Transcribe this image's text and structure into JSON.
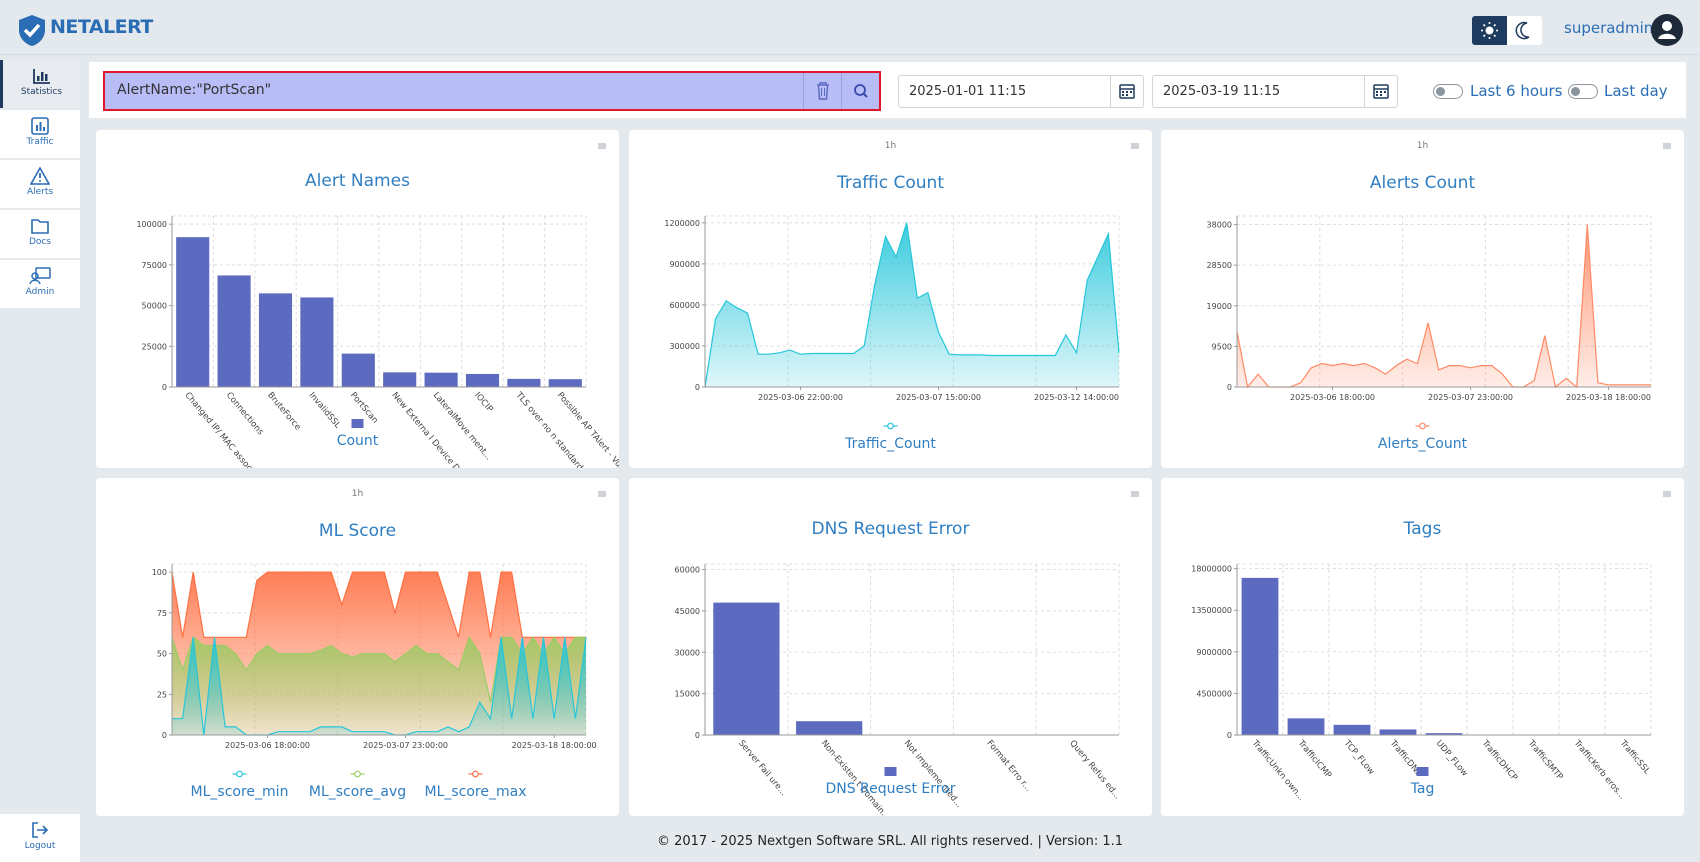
{
  "header": {
    "brand": "NETALERT",
    "user": "superadmin"
  },
  "sidebar": {
    "items": [
      "Statistics",
      "Traffic",
      "Alerts",
      "Docs",
      "Admin"
    ],
    "logout": "Logout"
  },
  "filter": {
    "query": "AlertName:\"PortScan\"",
    "from": "2025-01-01 11:15",
    "to": "2025-03-19 11:15",
    "toggles": [
      "Last 6 hours",
      "Last day"
    ]
  },
  "chart_data": [
    {
      "type": "bar",
      "title": "Alert Names",
      "categories": [
        "Changed IP/ MAC associa...",
        "Connections",
        "BruteForce",
        "InvalidSSL",
        "PortScan",
        "New Externa l Device De...",
        "LateralMove ment...",
        "IOCIP",
        "TLS over no n standard ...",
        "Possible AP TAlert - Vu..."
      ],
      "series": [
        {
          "name": "Count",
          "color": "#5c6bc0",
          "values": [
            92000,
            68500,
            57500,
            55000,
            20500,
            9000,
            8800,
            8000,
            5000,
            4800
          ]
        }
      ],
      "ylim": [
        0,
        105000
      ],
      "yticks": [
        0,
        25000,
        50000,
        75000,
        100000
      ],
      "grid": true
    },
    {
      "type": "area",
      "interval": "1h",
      "title": "Traffic Count",
      "categories": [
        null,
        null,
        null,
        null,
        null,
        null,
        null,
        null,
        null,
        "2025-03-06 22:00:00",
        null,
        null,
        null,
        null,
        null,
        null,
        null,
        null,
        null,
        null,
        null,
        null,
        "2025-03-07 15:00:00",
        null,
        null,
        null,
        null,
        null,
        null,
        null,
        null,
        null,
        null,
        null,
        null,
        "2025-03-12 14:00:00",
        null,
        null,
        null,
        null
      ],
      "series": [
        {
          "name": "Traffic_Count",
          "color": "#26c6da",
          "values": [
            0,
            500000,
            630000,
            580000,
            540000,
            240000,
            240000,
            250000,
            270000,
            240000,
            245000,
            245000,
            245000,
            245000,
            245000,
            300000,
            750000,
            1100000,
            950000,
            1200000,
            650000,
            690000,
            400000,
            240000,
            235000,
            235000,
            235000,
            230000,
            230000,
            230000,
            230000,
            230000,
            230000,
            230000,
            380000,
            250000,
            780000,
            950000,
            1120000,
            250000
          ]
        }
      ],
      "ylim": [
        0,
        1250000
      ],
      "yticks": [
        0,
        300000,
        600000,
        900000,
        1200000
      ],
      "grid": true
    },
    {
      "type": "area",
      "interval": "1h",
      "title": "Alerts Count",
      "categories": [
        null,
        null,
        null,
        null,
        null,
        null,
        null,
        null,
        null,
        "2025-03-06 18:00:00",
        null,
        null,
        null,
        null,
        null,
        null,
        null,
        null,
        null,
        null,
        null,
        null,
        "2025-03-07 23:00:00",
        null,
        null,
        null,
        null,
        null,
        null,
        null,
        null,
        null,
        null,
        null,
        null,
        "2025-03-18 18:00:00",
        null,
        null,
        null,
        null
      ],
      "series": [
        {
          "name": "Alerts_Count",
          "color": "#ff8a65",
          "values": [
            13000,
            0,
            3000,
            0,
            0,
            0,
            1000,
            4500,
            5500,
            5000,
            5500,
            5000,
            5500,
            4500,
            3000,
            5000,
            6500,
            5500,
            15000,
            4000,
            5000,
            5000,
            4500,
            5000,
            5000,
            3000,
            0,
            0,
            1500,
            12000,
            0,
            2000,
            0,
            38000,
            1000,
            500,
            500,
            500,
            500,
            500
          ]
        }
      ],
      "ylim": [
        0,
        40000
      ],
      "yticks": [
        0,
        9500,
        19000,
        28500,
        38000
      ],
      "grid": true
    },
    {
      "type": "area",
      "interval": "1h",
      "title": "ML Score",
      "categories": [
        null,
        null,
        null,
        null,
        null,
        null,
        null,
        null,
        null,
        "2025-03-06 18:00:00",
        null,
        null,
        null,
        null,
        null,
        null,
        null,
        null,
        null,
        null,
        null,
        null,
        "2025-03-07 23:00:00",
        null,
        null,
        null,
        null,
        null,
        null,
        null,
        null,
        null,
        null,
        null,
        null,
        null,
        "2025-03-18 18:00:00",
        null,
        null,
        null
      ],
      "series": [
        {
          "name": "ML_score_max",
          "color": "#ff7043",
          "values": [
            100,
            60,
            100,
            60,
            60,
            60,
            60,
            60,
            95,
            100,
            100,
            100,
            100,
            100,
            100,
            100,
            80,
            100,
            100,
            100,
            100,
            75,
            100,
            100,
            100,
            100,
            80,
            60,
            100,
            100,
            60,
            100,
            100,
            60,
            60,
            60,
            60,
            60,
            60,
            60
          ]
        },
        {
          "name": "ML_score_avg",
          "color": "#9ccc65",
          "values": [
            60,
            40,
            60,
            55,
            55,
            55,
            50,
            40,
            50,
            55,
            50,
            50,
            50,
            50,
            52,
            55,
            50,
            48,
            50,
            50,
            50,
            45,
            50,
            55,
            50,
            50,
            45,
            40,
            60,
            50,
            20,
            60,
            60,
            50,
            60,
            50,
            60,
            50,
            60,
            60
          ]
        },
        {
          "name": "ML_score_min",
          "color": "#26c6da",
          "values": [
            10,
            10,
            60,
            0,
            60,
            5,
            5,
            0,
            0,
            0,
            2,
            2,
            2,
            2,
            5,
            5,
            5,
            2,
            2,
            2,
            2,
            0,
            0,
            2,
            2,
            2,
            5,
            2,
            5,
            20,
            10,
            60,
            10,
            60,
            10,
            60,
            10,
            60,
            10,
            60
          ]
        }
      ],
      "legend_order": [
        "ML_score_min",
        "ML_score_avg",
        "ML_score_max"
      ],
      "ylim": [
        0,
        105
      ],
      "yticks": [
        0,
        25,
        50,
        75,
        100
      ],
      "grid": true
    },
    {
      "type": "bar",
      "title": "DNS Request Error",
      "categories": [
        "Server Fail ure...",
        "Non-Existen t Domain...",
        "Not impleme nted...",
        "Format Erro r...",
        "Query Refus ed..."
      ],
      "series": [
        {
          "name": "DNS Request Error",
          "color": "#5c6bc0",
          "values": [
            48000,
            5000,
            0,
            0,
            0
          ]
        }
      ],
      "ylim": [
        0,
        62000
      ],
      "yticks": [
        0,
        15000,
        30000,
        45000,
        60000
      ],
      "grid": true
    },
    {
      "type": "bar",
      "title": "Tags",
      "categories": [
        "TrafficUnkn own...",
        "TrafficICMP",
        "TCP_FLow",
        "TrafficDNS",
        "UDP_FLow",
        "TrafficDHCP",
        "TrafficSMTP",
        "TrafficKerb eros...",
        "TrafficSSL"
      ],
      "series": [
        {
          "name": "Tag",
          "color": "#5c6bc0",
          "values": [
            17000000,
            1800000,
            1100000,
            600000,
            200000,
            0,
            0,
            0,
            0
          ]
        }
      ],
      "ylim": [
        0,
        18500000
      ],
      "yticks": [
        0,
        4500000,
        9000000,
        13500000,
        18000000
      ],
      "grid": true
    }
  ],
  "footer": "© 2017 - 2025 Nextgen Software SRL. All rights reserved. | Version: 1.1"
}
